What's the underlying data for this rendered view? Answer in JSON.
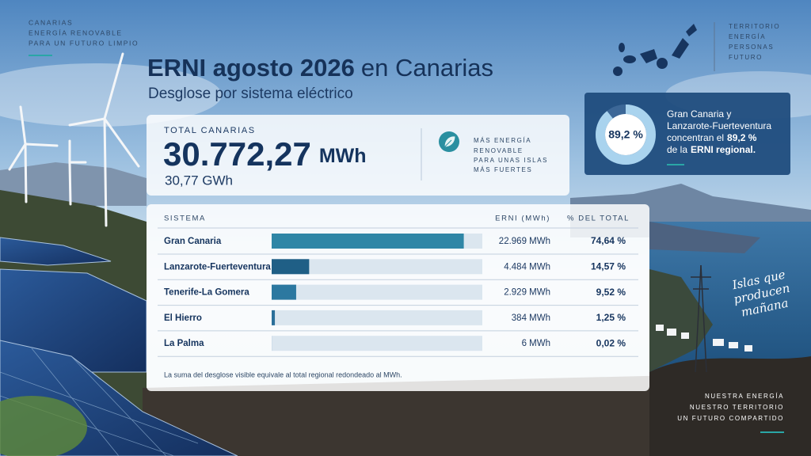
{
  "left_tagline": [
    "CANARIAS",
    "ENERGÍA RENOVABLE",
    "PARA UN FUTURO LIMPIO"
  ],
  "right_tagline": [
    "TERRITORIO",
    "ENERGÍA",
    "PERSONAS",
    "FUTURO"
  ],
  "header": {
    "title_bold": "ERNI agosto 2026",
    "title_light": "en Canarias",
    "subtitle": "Desglose por sistema eléctrico"
  },
  "total": {
    "label": "TOTAL CANARIAS",
    "value": "30.772,27",
    "unit": "MWh",
    "secondary": "30,77 GWh"
  },
  "slogan": [
    "MÁS ENERGÍA",
    "RENOVABLE",
    "PARA UNAS ISLAS",
    "MÁS FUERTES"
  ],
  "highlight": {
    "line1": "Gran Canaria y",
    "line2": "Lanzarote-Fuerteventura",
    "line3": "concentran el",
    "value": 89.2,
    "value_label": "89,2 %",
    "line4": "de la",
    "line4_bold": "ERNI regional."
  },
  "chart_data": {
    "type": "bar",
    "columns": [
      "SISTEMA",
      "ERNI (MWh)",
      "% DEL TOTAL"
    ],
    "categories": [
      "Gran Canaria",
      "Lanzarote-Fuerteventura",
      "Tenerife-La Gomera",
      "El Hierro",
      "La Palma"
    ],
    "erni_mwh": [
      "22.969 MWh",
      "4.484 MWh",
      "2.929 MWh",
      "384 MWh",
      "6 MWh"
    ],
    "values": [
      74.64,
      14.57,
      9.52,
      1.25,
      0.02
    ],
    "value_labels": [
      "74,64 %",
      "14,57 %",
      "9,52 %",
      "1,25 %",
      "0,02 %"
    ],
    "colors": [
      "#2f86a6",
      "#1f5f86",
      "#2c78a0",
      "#2a6f99",
      "#2a6f99"
    ],
    "footnote": "La suma del desglose visible equivale al total regional redondeado al MWh."
  },
  "script_text": [
    "Islas que",
    "producen",
    "mañana"
  ],
  "bottom_tagline": [
    "NUESTRA ENERGÍA",
    "NUESTRO TERRITORIO",
    "UN FUTURO COMPARTIDO"
  ]
}
